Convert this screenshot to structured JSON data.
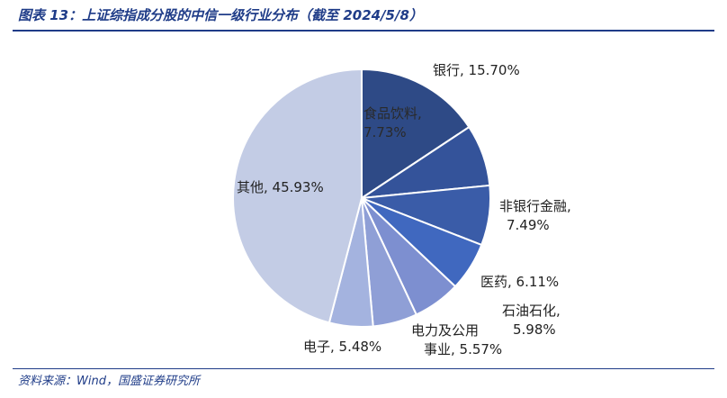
{
  "header": {
    "title": "图表 13：上证综指成分股的中信一级行业分布（截至 2024/5/8）"
  },
  "footer": {
    "source": "资料来源：Wind，国盛证券研究所"
  },
  "chart_data": {
    "type": "pie",
    "title": "",
    "slices": [
      {
        "name": "银行",
        "value": 15.7,
        "label_lines": [
          "银行, 15.70%"
        ],
        "color": "#2e4a86"
      },
      {
        "name": "食品饮料",
        "value": 7.73,
        "label_lines": [
          "食品饮料,",
          "7.73%"
        ],
        "color": "#34539a"
      },
      {
        "name": "非银行金融",
        "value": 7.49,
        "label_lines": [
          "非银行金融,",
          "7.49%"
        ],
        "color": "#3a5ca8"
      },
      {
        "name": "医药",
        "value": 6.11,
        "label_lines": [
          "医药, 6.11%"
        ],
        "color": "#4068bf"
      },
      {
        "name": "石油石化",
        "value": 5.98,
        "label_lines": [
          "石油石化,",
          "5.98%"
        ],
        "color": "#7d8fd0"
      },
      {
        "name": "电力及公用事业",
        "value": 5.57,
        "label_lines": [
          "电力及公用",
          "事业, 5.57%"
        ],
        "color": "#8f9fd6"
      },
      {
        "name": "电子",
        "value": 5.48,
        "label_lines": [
          "电子, 5.48%"
        ],
        "color": "#a4b3df"
      },
      {
        "name": "其他",
        "value": 45.93,
        "label_lines": [
          "其他, 45.93%"
        ],
        "color": "#c3cce5"
      }
    ]
  }
}
